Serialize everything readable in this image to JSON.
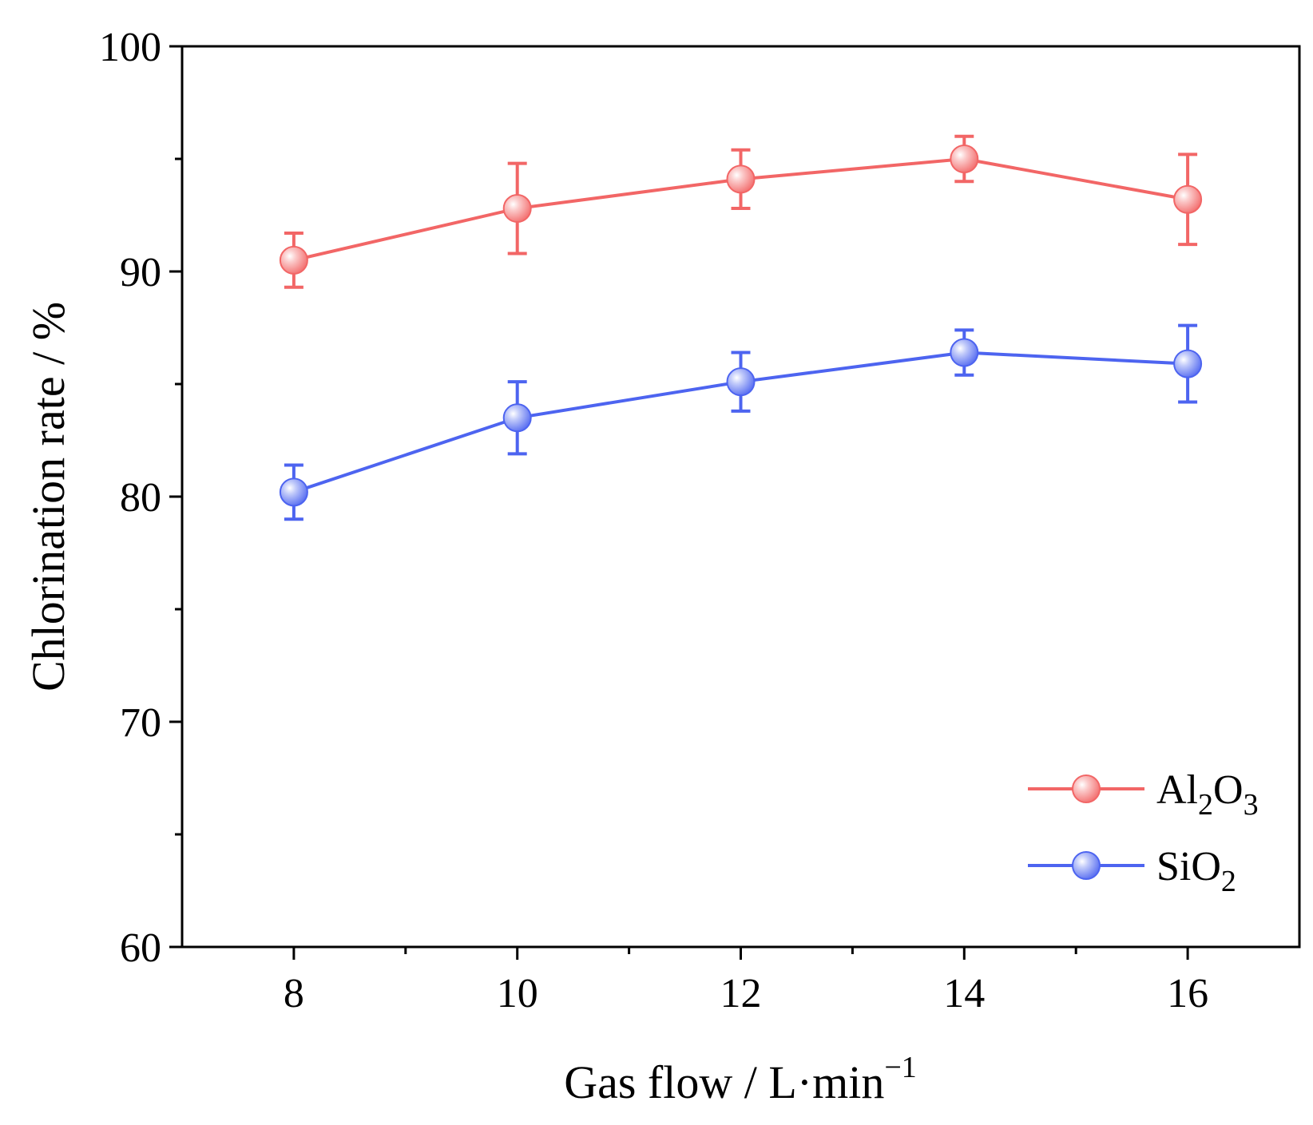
{
  "chart_data": {
    "type": "line",
    "title": "",
    "xlabel": "Gas flow / L·min",
    "xlabel_sup": "−1",
    "ylabel": "Chlorination rate / %",
    "xlim": [
      7,
      17
    ],
    "ylim": [
      60,
      100
    ],
    "x_ticks": [
      8,
      10,
      12,
      14,
      16
    ],
    "x_tick_labels": [
      "8",
      "10",
      "12",
      "14",
      "16"
    ],
    "x_minor_ticks": [
      9,
      11,
      13,
      15
    ],
    "y_ticks": [
      60,
      70,
      80,
      90,
      100
    ],
    "y_tick_labels": [
      "60",
      "70",
      "80",
      "90",
      "100"
    ],
    "y_minor_ticks": [
      65,
      75,
      85,
      95
    ],
    "grid": false,
    "legend_position": "bottom-right",
    "series": [
      {
        "name": "Al2O3",
        "label_parts": [
          [
            "Al",
            ""
          ],
          [
            "2",
            "sub"
          ],
          [
            "O",
            ""
          ],
          [
            "3",
            "sub"
          ]
        ],
        "color": "#f26666",
        "x": [
          8,
          10,
          12,
          14,
          16
        ],
        "values": [
          90.5,
          92.8,
          94.1,
          95.0,
          93.2
        ],
        "error": [
          1.2,
          2.0,
          1.3,
          1.0,
          2.0
        ]
      },
      {
        "name": "SiO2",
        "label_parts": [
          [
            "SiO",
            ""
          ],
          [
            "2",
            "sub"
          ]
        ],
        "color": "#4d64f0",
        "x": [
          8,
          10,
          12,
          14,
          16
        ],
        "values": [
          80.2,
          83.5,
          85.1,
          86.4,
          85.9
        ],
        "error": [
          1.2,
          1.6,
          1.3,
          1.0,
          1.7
        ]
      }
    ]
  }
}
